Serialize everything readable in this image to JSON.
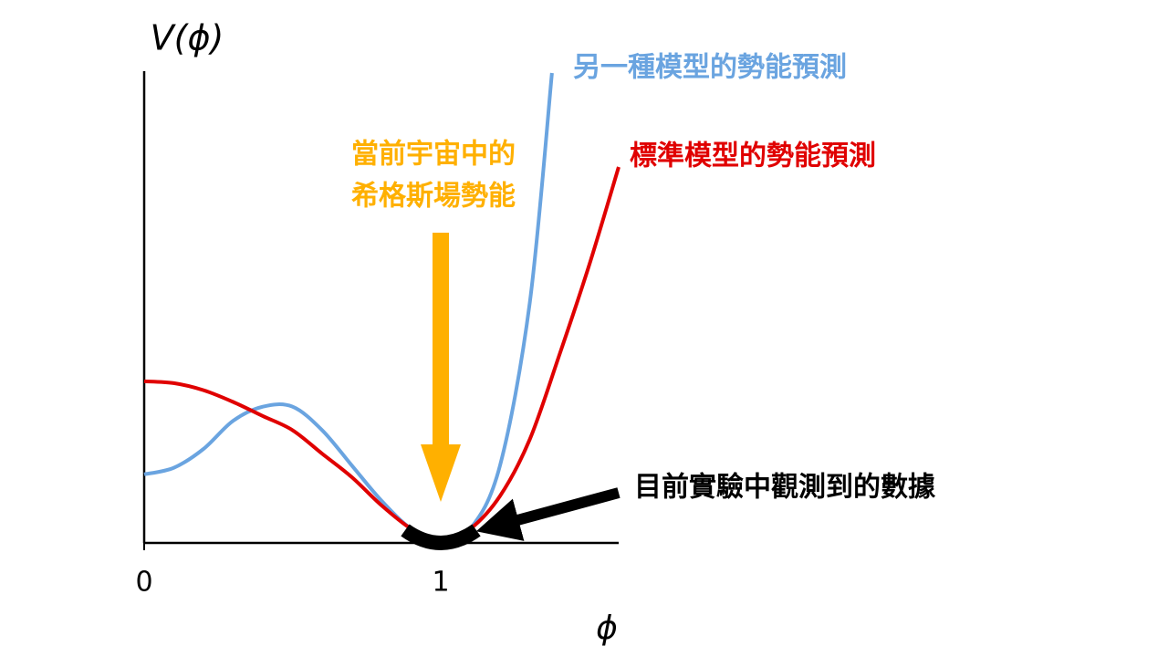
{
  "chart_data": {
    "type": "line",
    "y_label": "V(ϕ)",
    "x_label": "ϕ",
    "xlim": [
      0,
      1.6
    ],
    "ylim": [
      0,
      1
    ],
    "xticks": [
      0,
      1
    ],
    "series": [
      {
        "name": "另一種模型的勢能預測",
        "color": "#6aa4e0",
        "x": [
          0,
          0.1,
          0.2,
          0.3,
          0.4,
          0.5,
          0.6,
          0.7,
          0.8,
          0.9,
          1,
          1.1,
          1.2,
          1.3,
          1.375
        ],
        "values": [
          0.146,
          0.16,
          0.2,
          0.26,
          0.29,
          0.29,
          0.24,
          0.165,
          0.09,
          0.03,
          0,
          0.03,
          0.165,
          0.51,
          1.0
        ]
      },
      {
        "name": "標準模型的勢能預測",
        "color": "#e00000",
        "x": [
          0,
          0.1,
          0.2,
          0.3,
          0.4,
          0.5,
          0.6,
          0.7,
          0.8,
          0.9,
          1,
          1.1,
          1.2,
          1.3,
          1.4,
          1.5,
          1.6
        ],
        "values": [
          0.344,
          0.34,
          0.325,
          0.3,
          0.27,
          0.24,
          0.19,
          0.14,
          0.08,
          0.03,
          0,
          0.03,
          0.1,
          0.22,
          0.4,
          0.59,
          0.8
        ]
      }
    ],
    "annotations": {
      "current_higgs": [
        "當前宇宙中的",
        "希格斯場勢能"
      ],
      "current_color": "#ffb000",
      "observed": "目前實驗中觀測到的數據",
      "observed_range": [
        0.88,
        1.12
      ]
    }
  }
}
